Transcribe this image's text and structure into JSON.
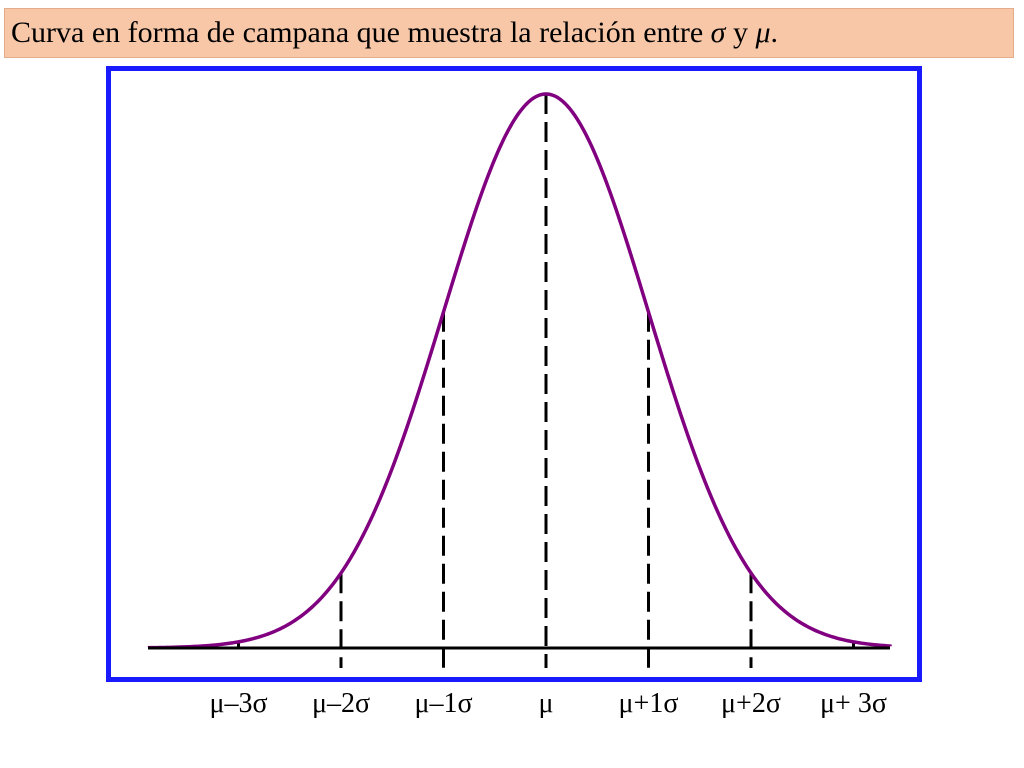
{
  "title": {
    "text": "Curva en forma de campana que muestra la relación entre",
    "sigma_symbol": "σ",
    "connector": "y",
    "mu_symbol": "μ",
    "end": "."
  },
  "colors": {
    "title_background": "#f7c7a8",
    "frame_border": "#1a1aff",
    "curve": "#800080",
    "axis": "#000000"
  },
  "chart_data": {
    "type": "line",
    "title": "Curva en forma de campana que muestra la relación entre σ y μ.",
    "xlabel": "",
    "ylabel": "",
    "xlim": [
      -3.9,
      3.4
    ],
    "ylim": [
      0,
      1
    ],
    "grid": false,
    "legend": "none",
    "series": [
      {
        "distribution": "normal",
        "mean": 0,
        "sd": 1
      }
    ],
    "reference_lines": [
      {
        "x": -3,
        "height": 0.011
      },
      {
        "x": -2,
        "height": 0.135
      },
      {
        "x": -1,
        "height": 0.607
      },
      {
        "x": 0,
        "height": 1.0
      },
      {
        "x": 1,
        "height": 0.607
      },
      {
        "x": 2,
        "height": 0.135
      },
      {
        "x": 3,
        "height": 0.011
      }
    ],
    "tick_labels": [
      {
        "x": -3,
        "label": "μ–3σ"
      },
      {
        "x": -2,
        "label": "μ–2σ"
      },
      {
        "x": -1,
        "label": "μ–1σ"
      },
      {
        "x": 0,
        "label": "μ"
      },
      {
        "x": 1,
        "label": "μ+1σ"
      },
      {
        "x": 2,
        "label": "μ+2σ"
      },
      {
        "x": 3,
        "label": "μ+ 3σ"
      }
    ]
  }
}
